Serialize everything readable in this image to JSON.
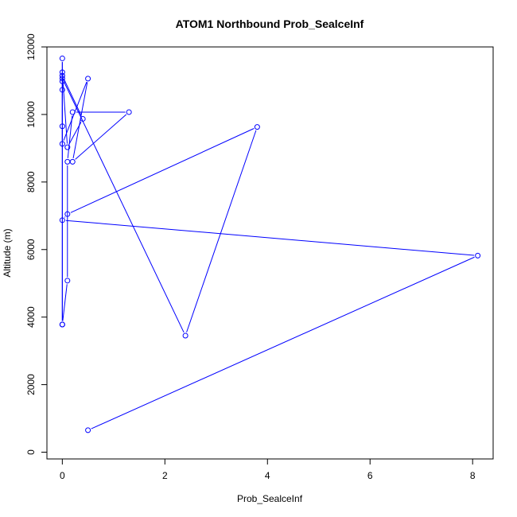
{
  "chart_data": {
    "type": "line",
    "title": "ATOM1 Northbound Prob_SealceInf",
    "xlabel": "Prob_SealceInf",
    "ylabel": "Altitude (m)",
    "xlim": [
      -0.3,
      8.4
    ],
    "ylim": [
      -200,
      12000
    ],
    "xticks": [
      0,
      2,
      4,
      6,
      8
    ],
    "yticks": [
      0,
      2000,
      4000,
      6000,
      8000,
      10000,
      12000
    ],
    "grid": false,
    "series": [
      {
        "color": "#0000ff",
        "marker": "open-circle",
        "x": [
          0.5,
          8.1,
          0.0,
          0.1,
          3.8,
          2.4,
          0.0,
          0.0,
          0.1,
          0.4,
          0.0,
          0.0,
          0.0,
          0.0,
          0.1,
          0.1,
          0.2,
          1.3,
          0.2,
          0.5,
          0.0,
          0.0,
          0.0,
          0.0
        ],
        "y": [
          650,
          5820,
          6870,
          7050,
          9630,
          3450,
          11070,
          11250,
          9030,
          9870,
          11150,
          10980,
          10730,
          3780,
          5080,
          8600,
          10070,
          10070,
          8600,
          11060,
          9130,
          9650,
          11660,
          3780
        ]
      }
    ]
  }
}
